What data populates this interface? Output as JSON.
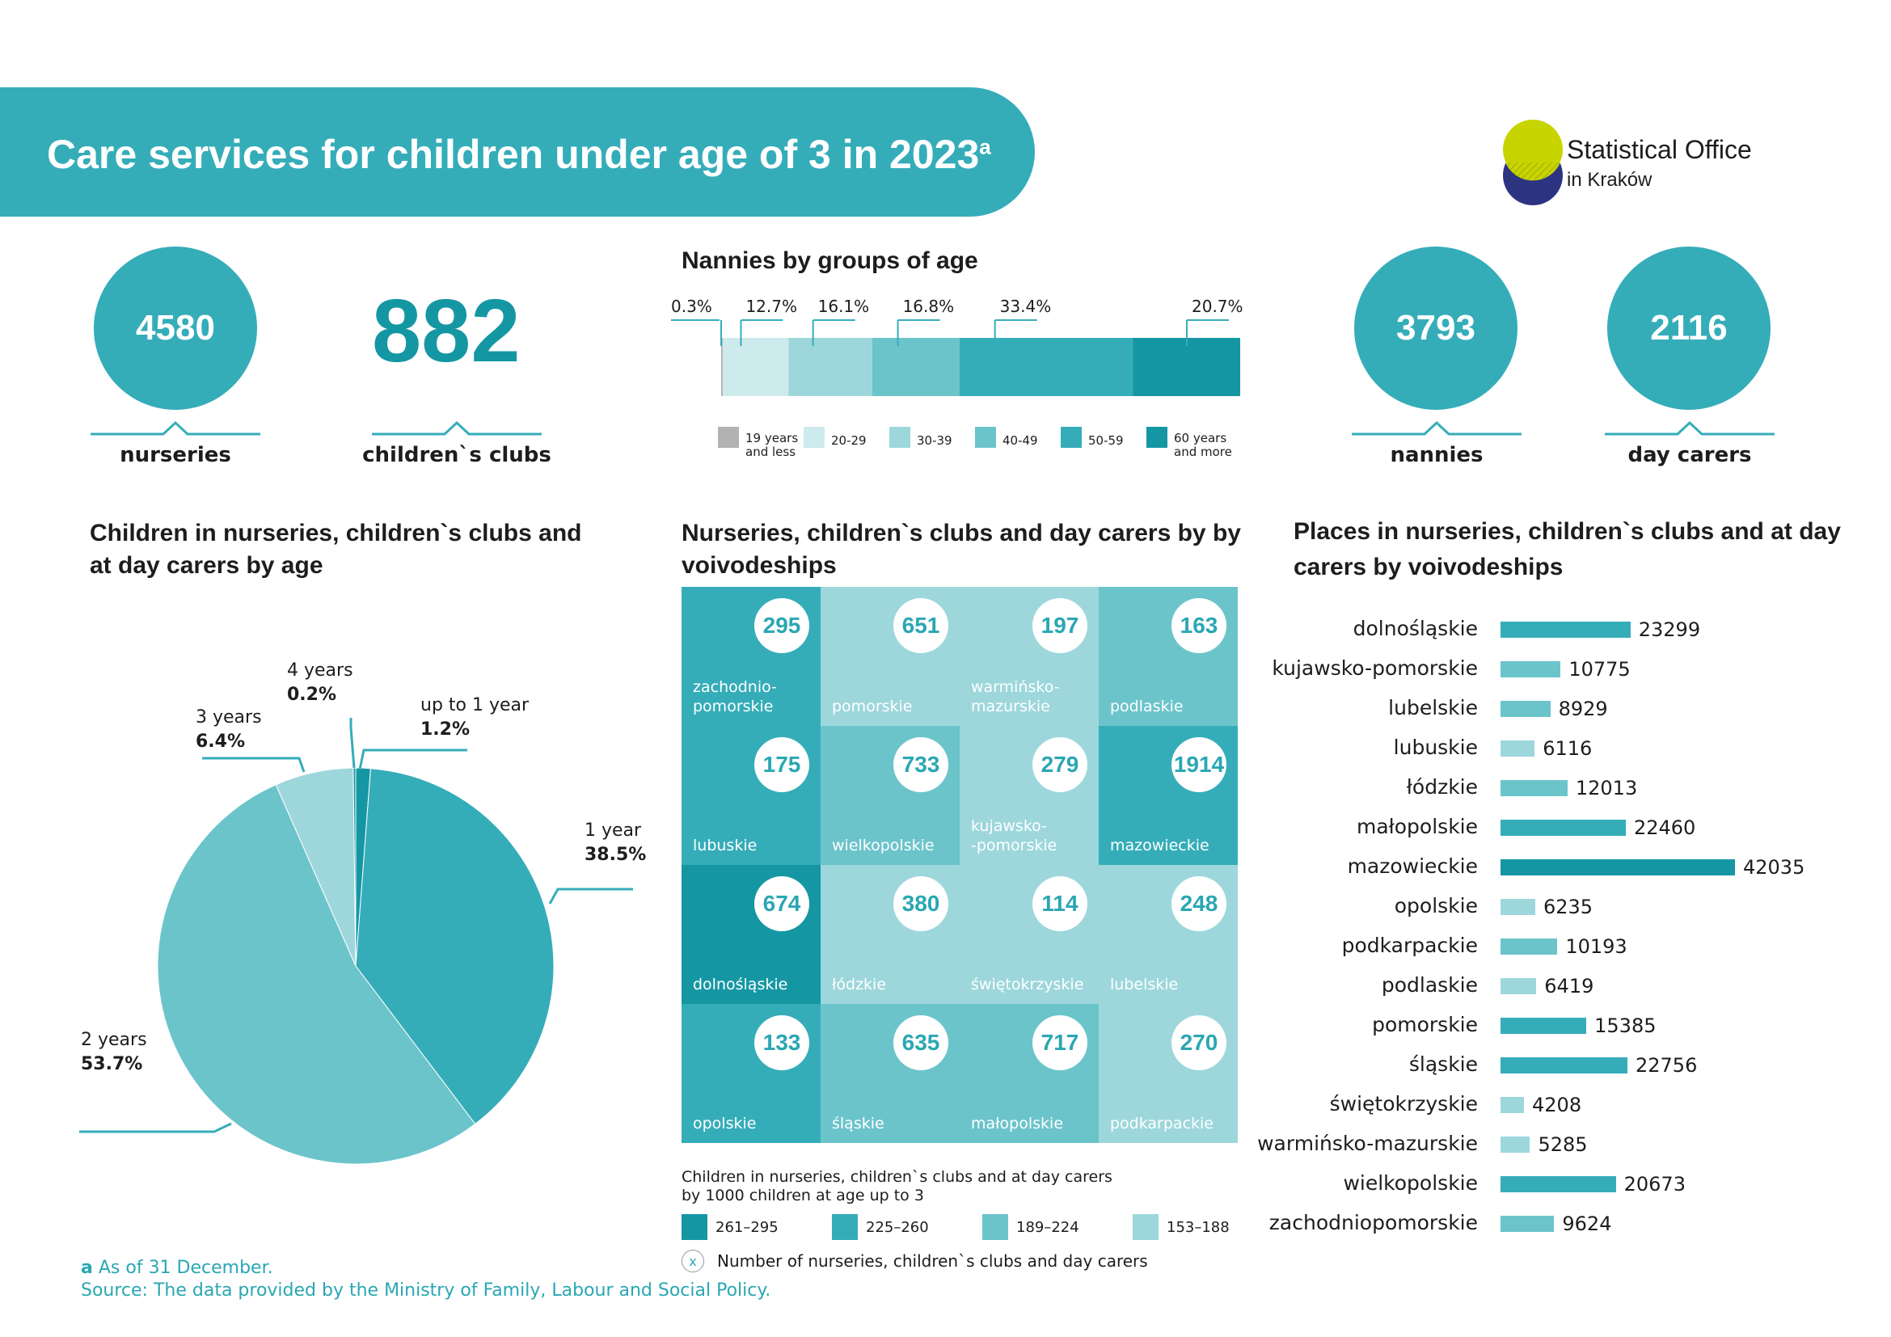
{
  "header": {
    "title": "Care services for children under age of 3 in 2023",
    "title_sup": "a",
    "logo_line1": "Statistical Office",
    "logo_line2": "in Kraków"
  },
  "stats": [
    {
      "value": "4580",
      "label": "nurseries"
    },
    {
      "value": "882",
      "label": "children`s clubs"
    },
    {
      "value": "3793",
      "label": "nannies"
    },
    {
      "value": "2116",
      "label": "day carers"
    }
  ],
  "colors": {
    "dark": "#1597a3",
    "mid": "#35adb9",
    "light": "#6cc4cb",
    "pale": "#9dd7dc",
    "very_pale": "#cdeaec",
    "grey": "#b2b2b2"
  },
  "chart_data": [
    {
      "type": "bar",
      "title": "Nannies by groups of age",
      "stacked": true,
      "categories": [
        "19 years and less",
        "20-29",
        "30-39",
        "40-49",
        "50-59",
        "60 years and more"
      ],
      "values": [
        0.3,
        12.7,
        16.1,
        16.8,
        33.4,
        20.7
      ],
      "labels": [
        "0.3%",
        "12.7%",
        "16.1%",
        "16.8%",
        "33.4%",
        "20.7%"
      ],
      "legend": [
        "19 years and less",
        "20-29",
        "30-39",
        "40-49",
        "50-59",
        "60 years and more"
      ]
    },
    {
      "type": "pie",
      "title": "Children in nurseries, children`s clubs and at day carers by age",
      "categories": [
        "up to 1 year",
        "1 year",
        "2 years",
        "3 years",
        "4 years"
      ],
      "values": [
        1.2,
        38.5,
        53.7,
        6.4,
        0.2
      ],
      "labels": [
        "1.2%",
        "38.5%",
        "53.7%",
        "6.4%",
        "0.2%"
      ]
    },
    {
      "type": "heatmap",
      "title": "Nurseries, children`s clubs and day carers by by voivodeships",
      "cells": [
        {
          "name": "zachodnio-pomorskie",
          "value": "295",
          "level": 1
        },
        {
          "name": "pomorskie",
          "value": "651",
          "level": 3
        },
        {
          "name": "warmińsko-mazurskie",
          "value": "197",
          "level": 3
        },
        {
          "name": "podlaskie",
          "value": "163",
          "level": 2
        },
        {
          "name": "lubuskie",
          "value": "175",
          "level": 1
        },
        {
          "name": "wielkopolskie",
          "value": "733",
          "level": 2
        },
        {
          "name": "kujawsko-pomorskie",
          "value": "279",
          "level": 3
        },
        {
          "name": "mazowieckie",
          "value": "1914",
          "level": 1
        },
        {
          "name": "dolnośląskie",
          "value": "674",
          "level": 0
        },
        {
          "name": "łódzkie",
          "value": "380",
          "level": 3
        },
        {
          "name": "świętokrzyskie",
          "value": "114",
          "level": 3
        },
        {
          "name": "lubelskie",
          "value": "248",
          "level": 3
        },
        {
          "name": "opolskie",
          "value": "133",
          "level": 1
        },
        {
          "name": "śląskie",
          "value": "635",
          "level": 2
        },
        {
          "name": "małopolskie",
          "value": "717",
          "level": 2
        },
        {
          "name": "podkarpackie",
          "value": "270",
          "level": 3
        }
      ],
      "legend_title": "Children in nurseries, children`s clubs and at day carers by 1000 children at age up to 3",
      "legend": [
        "261–295",
        "225–260",
        "189–224",
        "153–188"
      ],
      "legend_note_symbol": "x",
      "legend_note": "Number of nurseries, children`s clubs and day carers"
    },
    {
      "type": "bar",
      "orientation": "horizontal",
      "title": "Places in nurseries, children`s clubs and at day carers by voivodeships",
      "categories": [
        "dolnośląskie",
        "kujawsko-pomorskie",
        "lubelskie",
        "lubuskie",
        "łódzkie",
        "małopolskie",
        "mazowieckie",
        "opolskie",
        "podkarpackie",
        "podlaskie",
        "pomorskie",
        "śląskie",
        "świętokrzyskie",
        "warmińsko-mazurskie",
        "wielkopolskie",
        "zachodniopomorskie"
      ],
      "values": [
        23299,
        10775,
        8929,
        6116,
        12013,
        22460,
        42035,
        6235,
        10193,
        6419,
        15385,
        22756,
        4208,
        5285,
        20673,
        9624
      ],
      "levels": [
        1,
        2,
        2,
        3,
        2,
        1,
        0,
        3,
        2,
        3,
        1,
        1,
        3,
        3,
        1,
        2
      ]
    }
  ],
  "footnote": {
    "letter": "a",
    "text": "As of 31 December.",
    "source": "Source: The data provided by the Ministry of Family, Labour and Social Policy."
  }
}
